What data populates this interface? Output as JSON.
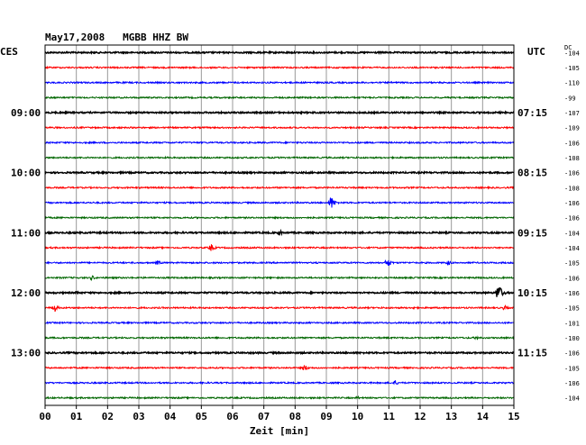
{
  "chart_data": {
    "type": "line",
    "title": "May17,2008   MGBB HHZ BW",
    "left_axis_label": "CES",
    "right_axis_label": "UTC",
    "dc_label": "DC",
    "xlabel": "Zeit [min]",
    "x_ticks": [
      "00",
      "01",
      "02",
      "03",
      "04",
      "05",
      "06",
      "07",
      "08",
      "09",
      "10",
      "11",
      "12",
      "13",
      "14",
      "15"
    ],
    "xlim": [
      0,
      15
    ],
    "row_count": 24,
    "trace_colors": [
      "#000000",
      "#ff0000",
      "#0000ff",
      "#006600"
    ],
    "left_time_labels": [
      {
        "row": 4,
        "label": "09:00"
      },
      {
        "row": 8,
        "label": "10:00"
      },
      {
        "row": 12,
        "label": "11:00"
      },
      {
        "row": 16,
        "label": "12:00"
      },
      {
        "row": 20,
        "label": "13:00"
      }
    ],
    "right_time_labels": [
      {
        "row": 4,
        "label": "07:15"
      },
      {
        "row": 8,
        "label": "08:15"
      },
      {
        "row": 12,
        "label": "09:15"
      },
      {
        "row": 16,
        "label": "10:15"
      },
      {
        "row": 20,
        "label": "11:15"
      }
    ],
    "dc_offsets": [
      "-104",
      "-105",
      "-110",
      "-99",
      "-107",
      "-109",
      "-106",
      "-108",
      "-106",
      "-108",
      "-106",
      "-106",
      "-104",
      "-104",
      "-105",
      "-106",
      "-106",
      "-105",
      "-101",
      "-100",
      "-106",
      "-105",
      "-106",
      "-104"
    ],
    "events": [
      {
        "row": 10,
        "minute": 9.15,
        "amplitude": 8
      },
      {
        "row": 12,
        "minute": 7.5,
        "amplitude": 3
      },
      {
        "row": 13,
        "minute": 5.3,
        "amplitude": 5
      },
      {
        "row": 14,
        "minute": 3.6,
        "amplitude": 3
      },
      {
        "row": 14,
        "minute": 10.95,
        "amplitude": 6
      },
      {
        "row": 14,
        "minute": 12.9,
        "amplitude": 3
      },
      {
        "row": 15,
        "minute": 1.5,
        "amplitude": 3
      },
      {
        "row": 16,
        "minute": 14.5,
        "amplitude": 11
      },
      {
        "row": 16,
        "minute": 1.0,
        "amplitude": 2
      },
      {
        "row": 17,
        "minute": 0.3,
        "amplitude": 5
      },
      {
        "row": 17,
        "minute": 14.7,
        "amplitude": 3
      },
      {
        "row": 17,
        "minute": 11.8,
        "amplitude": 2
      },
      {
        "row": 19,
        "minute": 13.8,
        "amplitude": 3
      },
      {
        "row": 21,
        "minute": 8.3,
        "amplitude": 4
      },
      {
        "row": 22,
        "minute": 11.2,
        "amplitude": 3
      },
      {
        "row": 23,
        "minute": 10.0,
        "amplitude": 2
      }
    ]
  }
}
